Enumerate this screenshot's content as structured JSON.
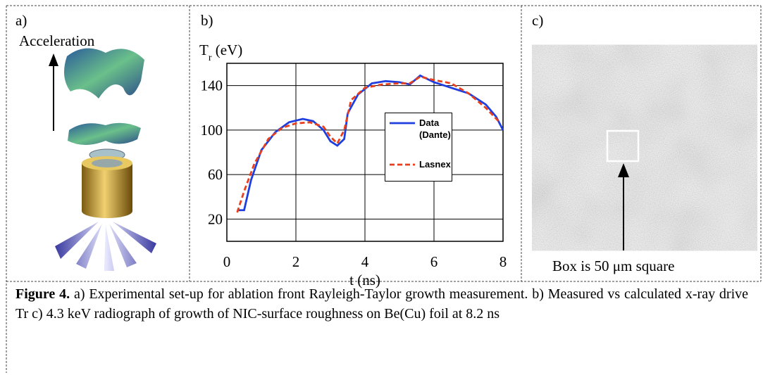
{
  "panels": {
    "a": {
      "label": "a)",
      "arrow_text": "Acceleration"
    },
    "c": {
      "label": "c)",
      "note": "Box is 50 μm square"
    }
  },
  "chart_data": {
    "type": "line",
    "panel_label": "b)",
    "y_label": "T",
    "y_label_sub": "r",
    "y_label_unit": "(eV)",
    "x_label": "t (ns)",
    "xlim": [
      0,
      8
    ],
    "xticks": [
      0,
      2,
      4,
      6,
      8
    ],
    "ylim": [
      0,
      160
    ],
    "yticks": [
      20,
      60,
      100,
      140
    ],
    "grid": true,
    "legend": "center-right",
    "series": [
      {
        "name": "Data (Dante)",
        "color": "#1f3ee0",
        "dash": false,
        "x": [
          0.3,
          0.5,
          0.7,
          1.0,
          1.4,
          1.8,
          2.2,
          2.5,
          2.8,
          3.0,
          3.2,
          3.4,
          3.5,
          3.8,
          4.2,
          4.6,
          5.0,
          5.3,
          5.6,
          6.0,
          6.5,
          7.0,
          7.5,
          7.8,
          8.0
        ],
        "values": [
          28,
          28,
          55,
          82,
          98,
          107,
          110,
          108,
          100,
          90,
          86,
          92,
          115,
          132,
          142,
          144,
          143,
          141,
          149,
          143,
          138,
          133,
          123,
          112,
          100
        ]
      },
      {
        "name": "Lasnex",
        "color": "#e8401c",
        "dash": true,
        "x": [
          0.3,
          0.5,
          0.8,
          1.2,
          1.6,
          2.0,
          2.4,
          2.8,
          3.0,
          3.2,
          3.4,
          3.6,
          4.0,
          4.5,
          5.0,
          5.3,
          5.6,
          6.0,
          6.5,
          7.0,
          7.5,
          7.9
        ],
        "values": [
          26,
          45,
          70,
          92,
          102,
          106,
          107,
          103,
          94,
          88,
          100,
          127,
          138,
          141,
          142,
          142,
          148,
          145,
          142,
          133,
          120,
          107
        ]
      }
    ]
  },
  "caption": {
    "label": "Figure 4.",
    "text": "a) Experimental set-up for ablation front Rayleigh-Taylor growth measurement. b) Measured vs calculated x-ray drive Tr  c) 4.3 keV radiograph of growth of NIC-surface roughness on Be(Cu) foil at 8.2 ns"
  }
}
